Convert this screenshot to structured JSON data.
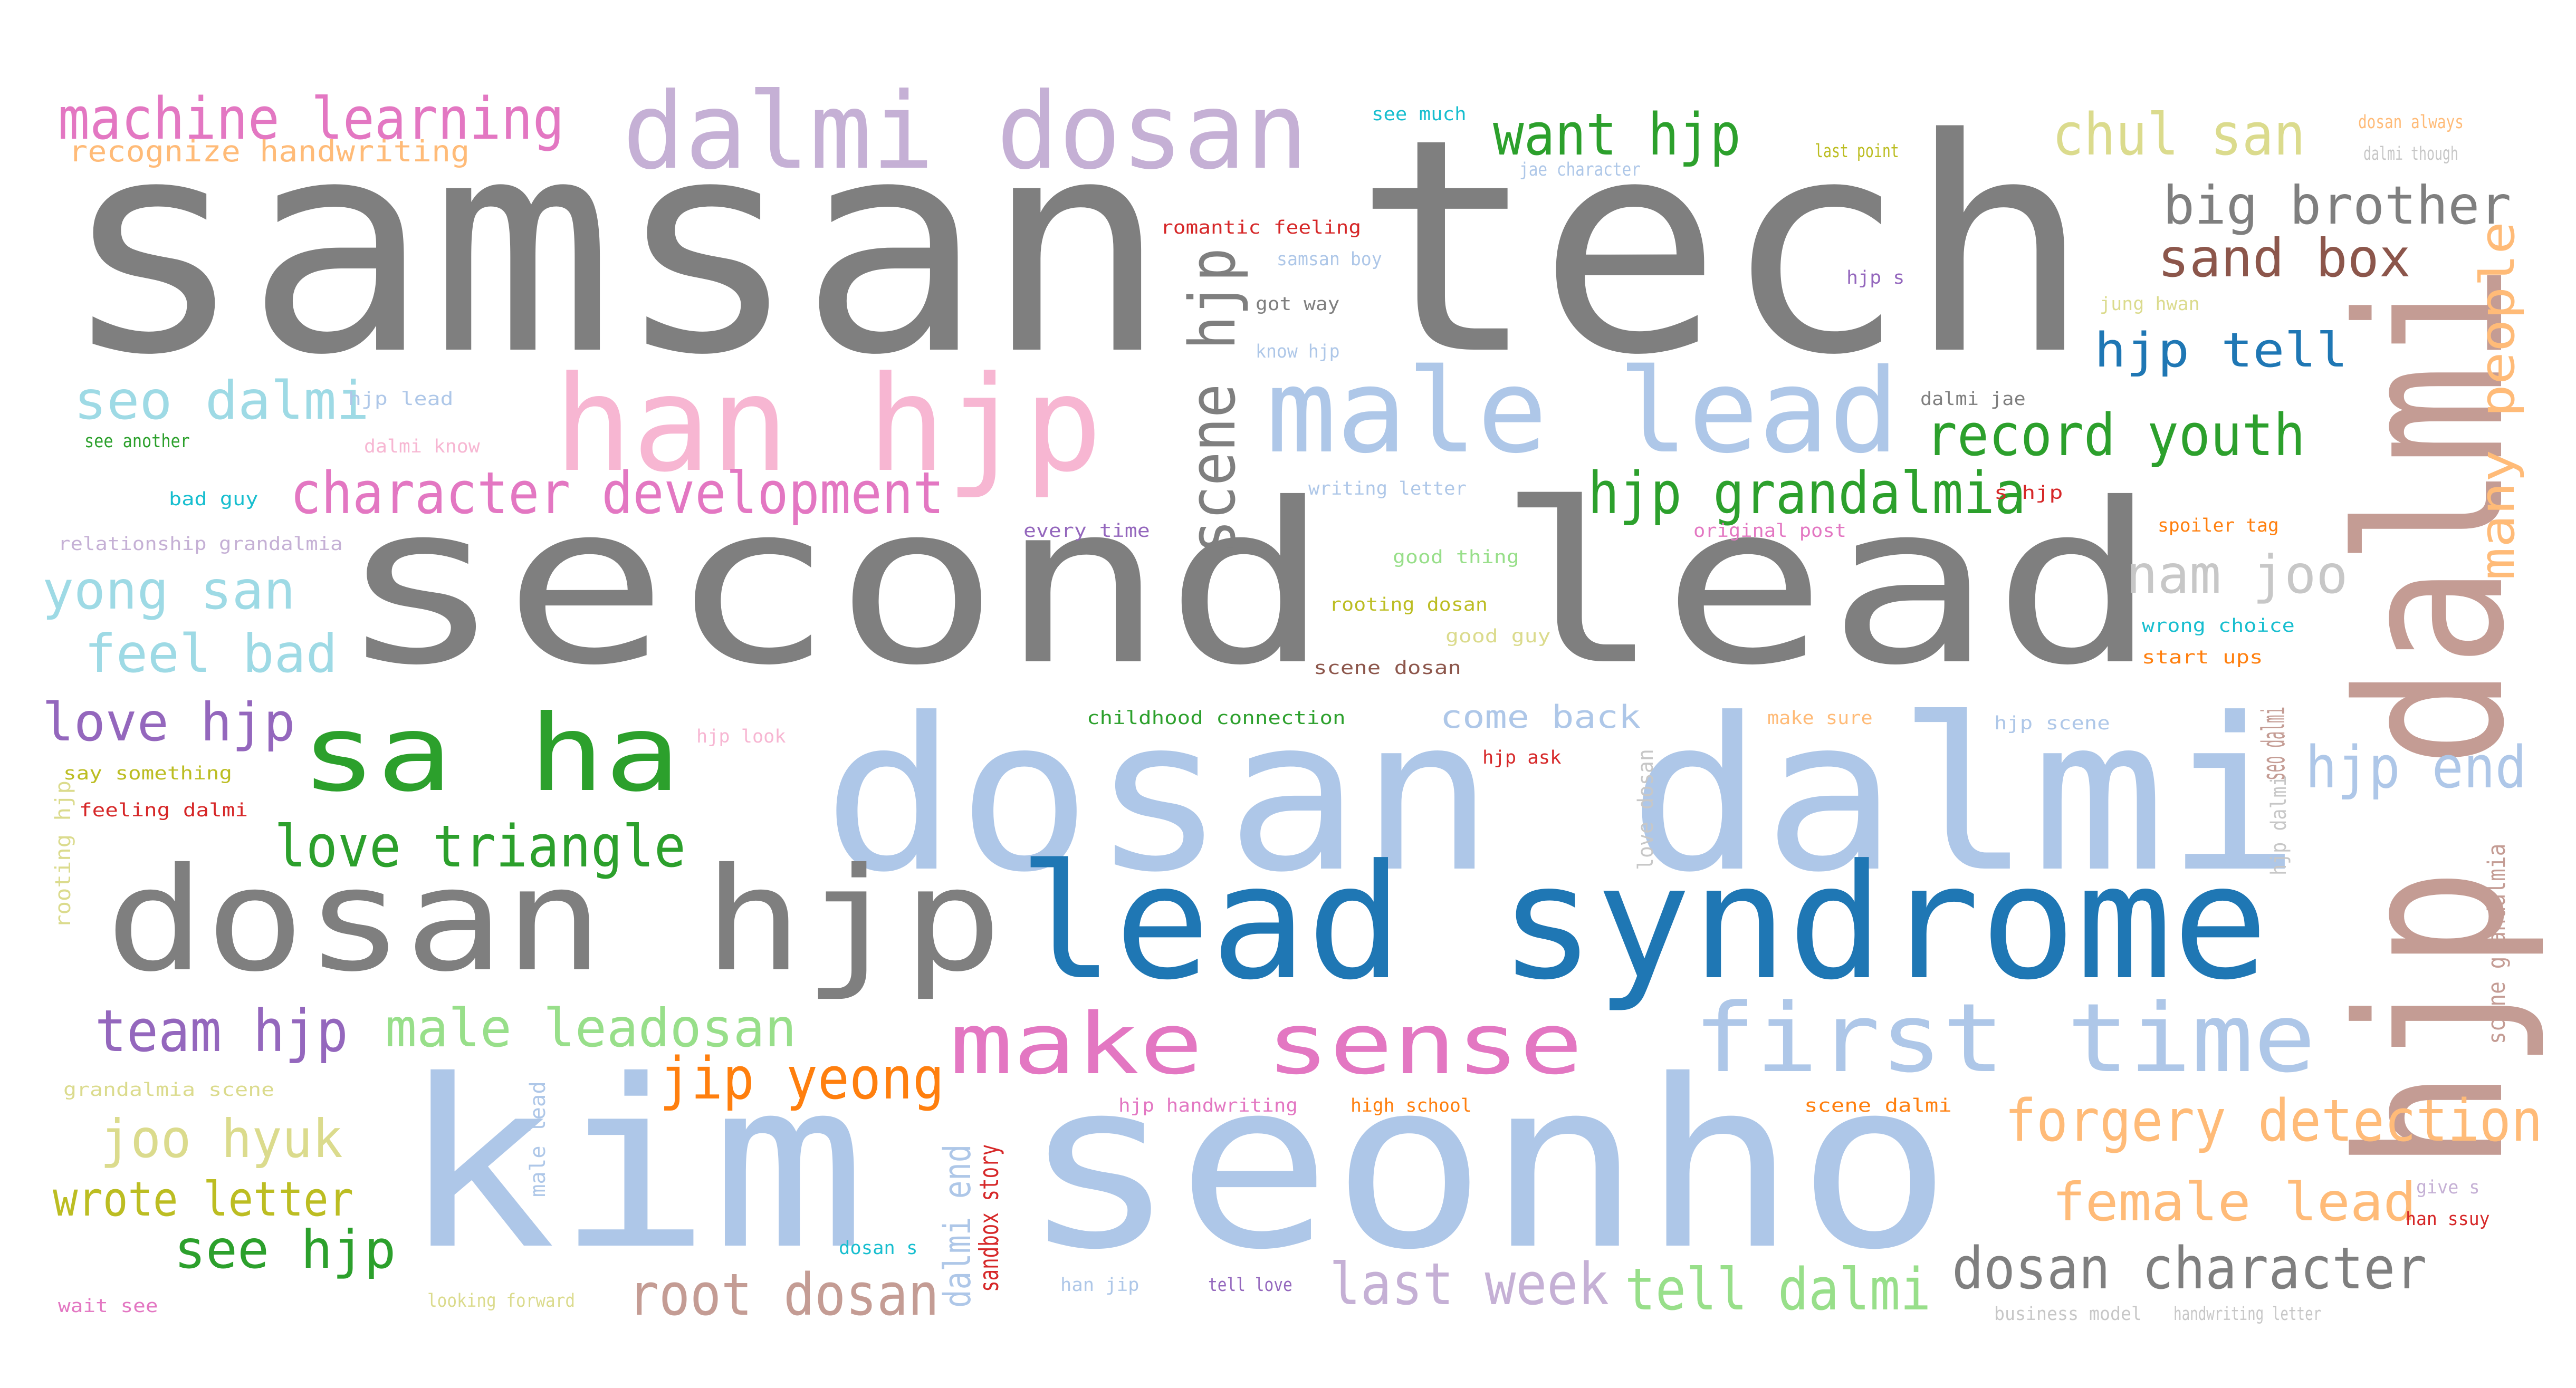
{
  "colors": {
    "background": "#ffffff",
    "gray": "#7f7f7f",
    "light_gray": "#c7c7c7",
    "blue": "#1f77b4",
    "light_blue": "#aec7e8",
    "green": "#2ca02c",
    "light_green": "#98df8a",
    "red": "#d62728",
    "pink": "#f7b6d2",
    "magenta": "#e377c2",
    "purple": "#9467bd",
    "lavender": "#c5b0d5",
    "brown": "#8c564b",
    "tan": "#c49c94",
    "orange": "#ff7f0e",
    "peach": "#ffbb78",
    "olive": "#bcbd22",
    "khaki": "#dbdb8d",
    "cyan": "#17becf",
    "light_cyan": "#9edae5"
  },
  "words": [
    {
      "text": "samsan tech",
      "color": "gray"
    },
    {
      "text": "second lead",
      "color": "gray"
    },
    {
      "text": "dosan dalmi",
      "color": "light_blue"
    },
    {
      "text": "kim seonho",
      "color": "light_blue"
    },
    {
      "text": "lead syndrome",
      "color": "blue"
    },
    {
      "text": "dosan hjp",
      "color": "gray"
    },
    {
      "text": "hjp dalmi",
      "color": "tan"
    },
    {
      "text": "han hjp",
      "color": "pink"
    },
    {
      "text": "male lead",
      "color": "light_blue"
    },
    {
      "text": "dalmi dosan",
      "color": "lavender"
    },
    {
      "text": "sa ha",
      "color": "green"
    },
    {
      "text": "first time",
      "color": "light_blue"
    },
    {
      "text": "make sense",
      "color": "magenta"
    },
    {
      "text": "character development",
      "color": "magenta"
    },
    {
      "text": "machine learning",
      "color": "magenta"
    },
    {
      "text": "recognize handwriting",
      "color": "peach"
    },
    {
      "text": "seo dalmi",
      "color": "light_cyan"
    },
    {
      "text": "yong san",
      "color": "light_cyan"
    },
    {
      "text": "feel bad",
      "color": "light_cyan"
    },
    {
      "text": "love hjp",
      "color": "purple"
    },
    {
      "text": "love triangle",
      "color": "green"
    },
    {
      "text": "team hjp",
      "color": "purple"
    },
    {
      "text": "male leadosan",
      "color": "light_green"
    },
    {
      "text": "jip yeong",
      "color": "orange"
    },
    {
      "text": "joo hyuk",
      "color": "khaki"
    },
    {
      "text": "wrote letter",
      "color": "olive"
    },
    {
      "text": "see hjp",
      "color": "green"
    },
    {
      "text": "root dosan",
      "color": "tan"
    },
    {
      "text": "last week",
      "color": "lavender"
    },
    {
      "text": "tell dalmi",
      "color": "light_green"
    },
    {
      "text": "dosan character",
      "color": "gray"
    },
    {
      "text": "female lead",
      "color": "peach"
    },
    {
      "text": "forgery detection",
      "color": "peach"
    },
    {
      "text": "hjp end",
      "color": "light_blue"
    },
    {
      "text": "nam joo",
      "color": "light_gray"
    },
    {
      "text": "hjp grandalmia",
      "color": "green"
    },
    {
      "text": "record youth",
      "color": "green"
    },
    {
      "text": "hjp tell",
      "color": "blue"
    },
    {
      "text": "sand box",
      "color": "brown"
    },
    {
      "text": "big brother",
      "color": "gray"
    },
    {
      "text": "chul san",
      "color": "khaki"
    },
    {
      "text": "want hjp",
      "color": "green"
    },
    {
      "text": "scene hjp",
      "color": "gray"
    },
    {
      "text": "many people",
      "color": "peach"
    },
    {
      "text": "see much",
      "color": "cyan"
    },
    {
      "text": "jae character",
      "color": "light_blue"
    },
    {
      "text": "last point",
      "color": "olive"
    },
    {
      "text": "dosan always",
      "color": "peach"
    },
    {
      "text": "dalmi though",
      "color": "light_gray"
    },
    {
      "text": "romantic feeling",
      "color": "red"
    },
    {
      "text": "samsan boy",
      "color": "light_blue"
    },
    {
      "text": "got way",
      "color": "gray"
    },
    {
      "text": "know hjp",
      "color": "light_blue"
    },
    {
      "text": "hjp s",
      "color": "purple"
    },
    {
      "text": "jung hwan",
      "color": "khaki"
    },
    {
      "text": "hjp lead",
      "color": "light_blue"
    },
    {
      "text": "see another",
      "color": "green"
    },
    {
      "text": "dalmi know",
      "color": "pink"
    },
    {
      "text": "bad guy",
      "color": "cyan"
    },
    {
      "text": "relationship grandalmia",
      "color": "lavender"
    },
    {
      "text": "writing letter",
      "color": "light_blue"
    },
    {
      "text": "every time",
      "color": "purple"
    },
    {
      "text": "original post",
      "color": "magenta"
    },
    {
      "text": "dalmi jae",
      "color": "gray"
    },
    {
      "text": "s hjp",
      "color": "red"
    },
    {
      "text": "spoiler tag",
      "color": "orange"
    },
    {
      "text": "good thing",
      "color": "light_green"
    },
    {
      "text": "rooting dosan",
      "color": "olive"
    },
    {
      "text": "good guy",
      "color": "khaki"
    },
    {
      "text": "scene dosan",
      "color": "brown"
    },
    {
      "text": "wrong choice",
      "color": "cyan"
    },
    {
      "text": "start ups",
      "color": "orange"
    },
    {
      "text": "childhood connection",
      "color": "green"
    },
    {
      "text": "come back",
      "color": "light_blue"
    },
    {
      "text": "make sure",
      "color": "peach"
    },
    {
      "text": "hjp scene",
      "color": "light_blue"
    },
    {
      "text": "hjp ask",
      "color": "red"
    },
    {
      "text": "hjp look",
      "color": "pink"
    },
    {
      "text": "say something",
      "color": "olive"
    },
    {
      "text": "feeling dalmi",
      "color": "red"
    },
    {
      "text": "rooting hjp",
      "color": "khaki"
    },
    {
      "text": "grandalmia scene",
      "color": "khaki"
    },
    {
      "text": "male lead",
      "color": "light_blue"
    },
    {
      "text": "hjp handwriting",
      "color": "magenta"
    },
    {
      "text": "high school",
      "color": "orange"
    },
    {
      "text": "scene dalmi",
      "color": "orange"
    },
    {
      "text": "dalmi end",
      "color": "light_blue"
    },
    {
      "text": "sandbox story",
      "color": "red"
    },
    {
      "text": "dosan s",
      "color": "cyan"
    },
    {
      "text": "han jip",
      "color": "light_blue"
    },
    {
      "text": "tell love",
      "color": "purple"
    },
    {
      "text": "looking forward",
      "color": "khaki"
    },
    {
      "text": "wait see",
      "color": "magenta"
    },
    {
      "text": "business model",
      "color": "light_gray"
    },
    {
      "text": "handwriting letter",
      "color": "light_gray"
    },
    {
      "text": "give s",
      "color": "lavender"
    },
    {
      "text": "han ssuy",
      "color": "red"
    },
    {
      "text": "seo dalmi",
      "color": "tan"
    },
    {
      "text": "scene grandalmia",
      "color": "tan"
    },
    {
      "text": "love dosan",
      "color": "light_gray"
    },
    {
      "text": "hjp dalmi",
      "color": "light_gray"
    }
  ]
}
